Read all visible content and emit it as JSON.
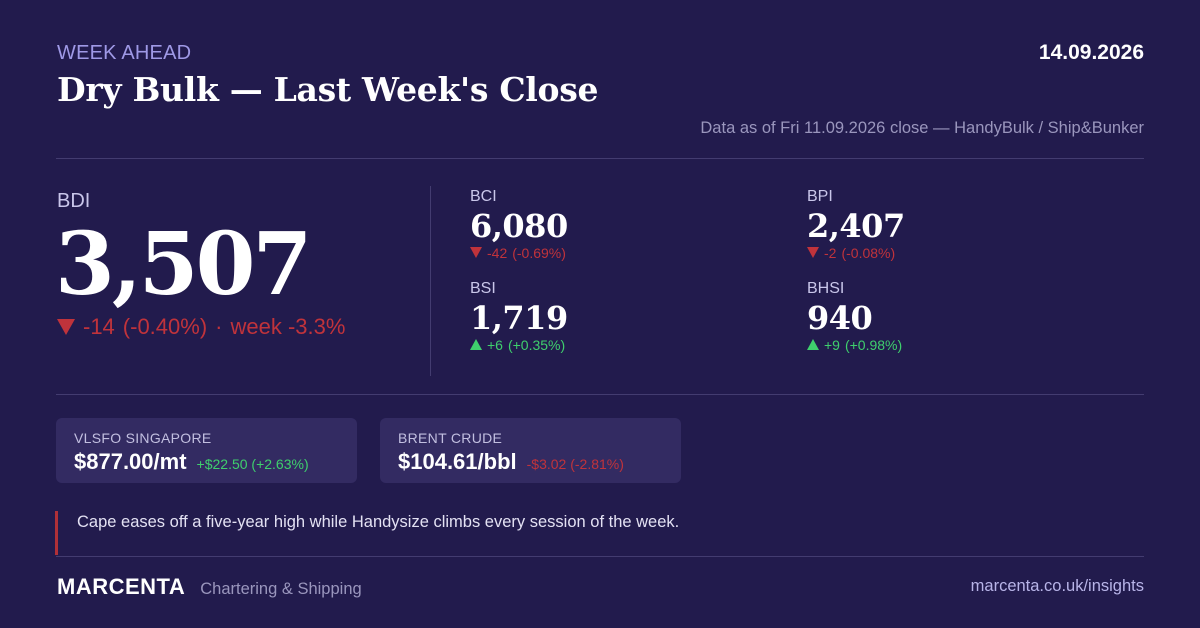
{
  "header": {
    "kicker": "WEEK AHEAD",
    "date": "14.09.2026",
    "title": "Dry Bulk — Last Week's Close",
    "source": "Data as of Fri 11.09.2026 close — HandyBulk / Ship&Bunker"
  },
  "bdi": {
    "label": "BDI",
    "value": "3,507",
    "change": "-14",
    "change_pct": "(-0.40%)",
    "separator": "·",
    "week": "week -3.3%",
    "direction": "down"
  },
  "indices": [
    {
      "label": "BCI",
      "value": "6,080",
      "change": "-42",
      "change_pct": "(-0.69%)",
      "direction": "down"
    },
    {
      "label": "BPI",
      "value": "2,407",
      "change": "-2",
      "change_pct": "(-0.08%)",
      "direction": "down"
    },
    {
      "label": "BSI",
      "value": "1,719",
      "change": "+6",
      "change_pct": "(+0.35%)",
      "direction": "up"
    },
    {
      "label": "BHSI",
      "value": "940",
      "change": "+9",
      "change_pct": "(+0.98%)",
      "direction": "up"
    }
  ],
  "cards": [
    {
      "label": "VLSFO SINGAPORE",
      "value": "$877.00/mt",
      "change": "+$22.50 (+2.63%)",
      "direction": "up"
    },
    {
      "label": "BRENT CRUDE",
      "value": "$104.61/bbl",
      "change": "-$3.02 (-2.81%)",
      "direction": "down"
    }
  ],
  "note": "Cape eases off a five-year high while Handysize climbs every session of the week.",
  "footer": {
    "brand": "MARCENTA",
    "tagline": "Chartering & Shipping",
    "url": "marcenta.co.uk/insights"
  },
  "colors": {
    "background": "#221b4d",
    "accent": "#9f99e6",
    "down": "#c0333b",
    "up": "#3fcf6d",
    "card": "#332b62"
  }
}
